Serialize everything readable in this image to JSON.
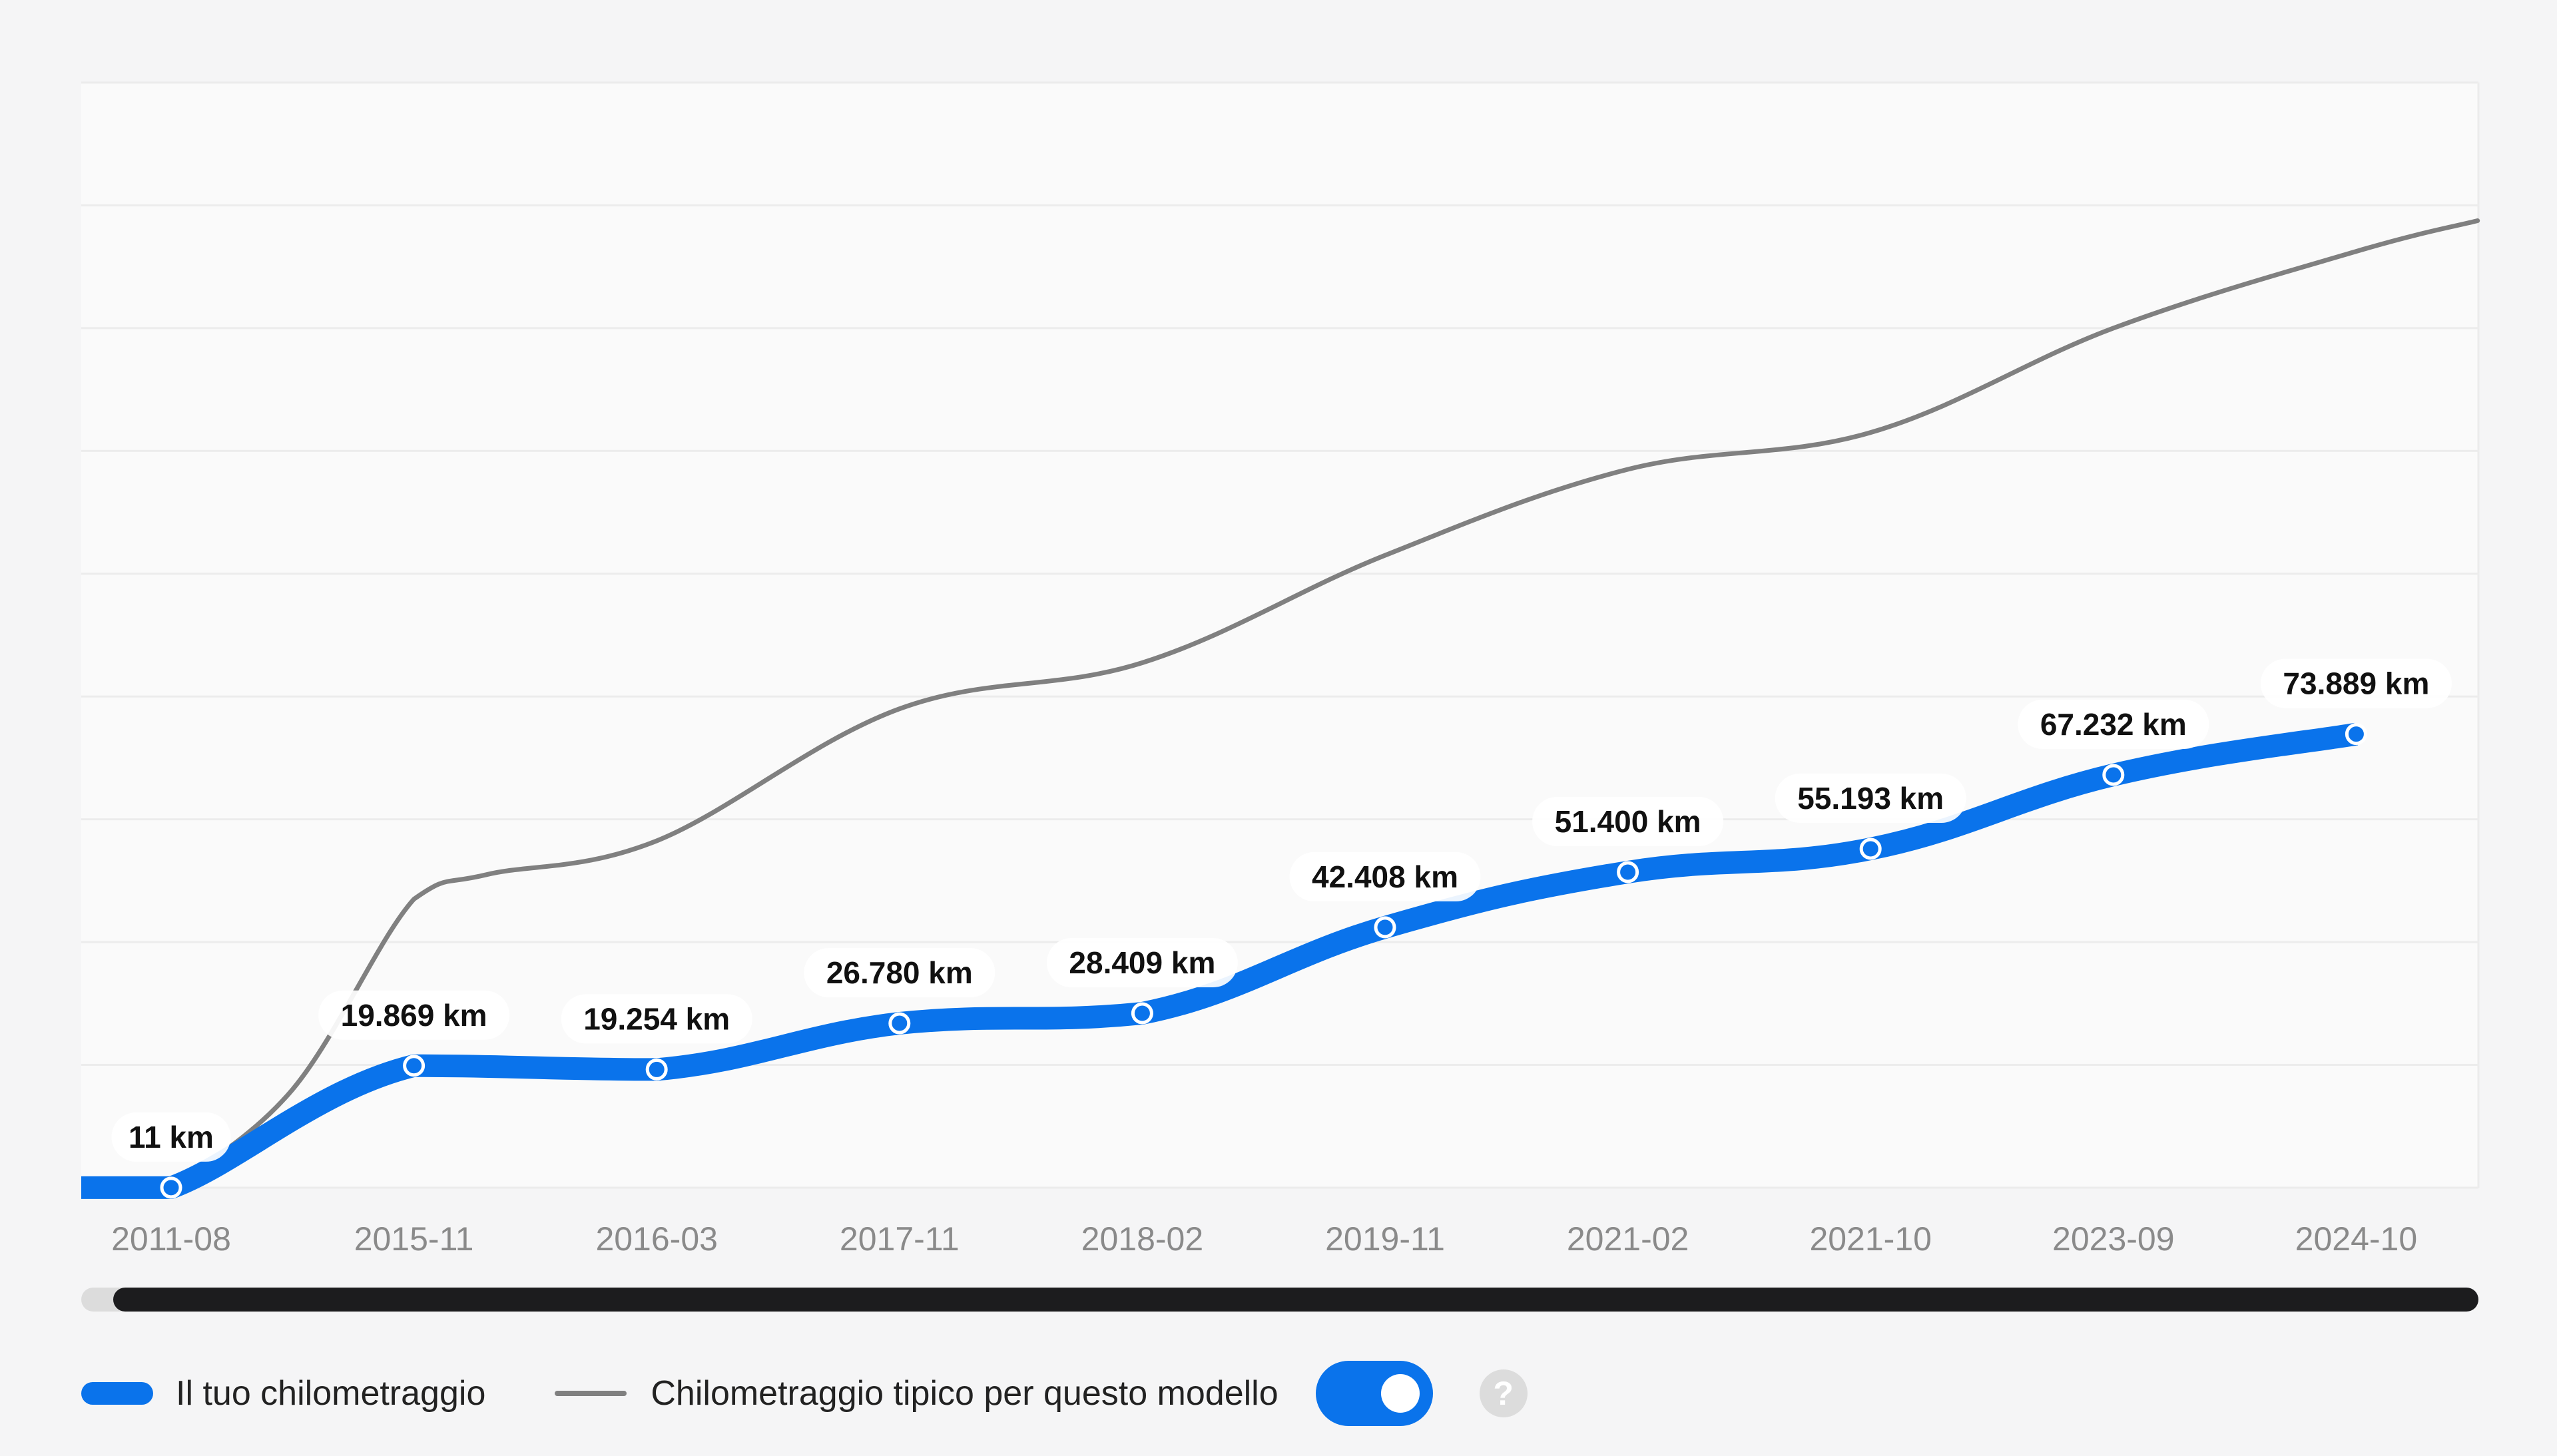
{
  "chart_data": {
    "type": "line",
    "categories": [
      "2011-08",
      "2015-11",
      "2016-03",
      "2017-11",
      "2018-02",
      "2019-11",
      "2021-02",
      "2021-10",
      "2023-09",
      "2024-10"
    ],
    "series": [
      {
        "name": "Il tuo chilometraggio",
        "values": [
          11,
          19869,
          19254,
          26780,
          28409,
          42408,
          51400,
          55193,
          67232,
          73889
        ],
        "labels": [
          "11 km",
          "19.869 km",
          "19.254 km",
          "26.780 km",
          "28.409 km",
          "42.408 km",
          "51.400 km",
          "55.193 km",
          "67.232 km",
          "73.889 km"
        ],
        "color": "#0a73eb"
      },
      {
        "name": "Chilometraggio tipico per questo modello",
        "values": [
          {
            "x": 0,
            "y": 0
          },
          {
            "x": 0.5,
            "y": 16000
          },
          {
            "x": 1,
            "y": 47000
          },
          {
            "x": 1.3,
            "y": 51000
          },
          {
            "x": 2,
            "y": 56500
          },
          {
            "x": 3,
            "y": 78000
          },
          {
            "x": 4,
            "y": 85500
          },
          {
            "x": 5,
            "y": 103000
          },
          {
            "x": 6,
            "y": 117000
          },
          {
            "x": 7,
            "y": 123000
          },
          {
            "x": 8,
            "y": 140000
          },
          {
            "x": 9,
            "y": 152500
          },
          {
            "x": 9.5,
            "y": 157500
          }
        ],
        "color": "#808080"
      }
    ],
    "ylim": [
      0,
      180000
    ],
    "grid": true,
    "legend_position": "bottom-left",
    "title": "",
    "xlabel": "",
    "ylabel": ""
  },
  "legend": {
    "primary_label": "Il tuo chilometraggio",
    "typical_label": "Chilometraggio tipico per questo modello",
    "help_symbol": "?",
    "toggle_state": "on"
  },
  "colors": {
    "primary": "#0a73eb",
    "typical": "#808080",
    "scrollbar_thumb": "#1c1c1e",
    "scrollbar_track": "#dcdcdc",
    "grid": "#ececec",
    "plot_background": "#fafafa"
  }
}
